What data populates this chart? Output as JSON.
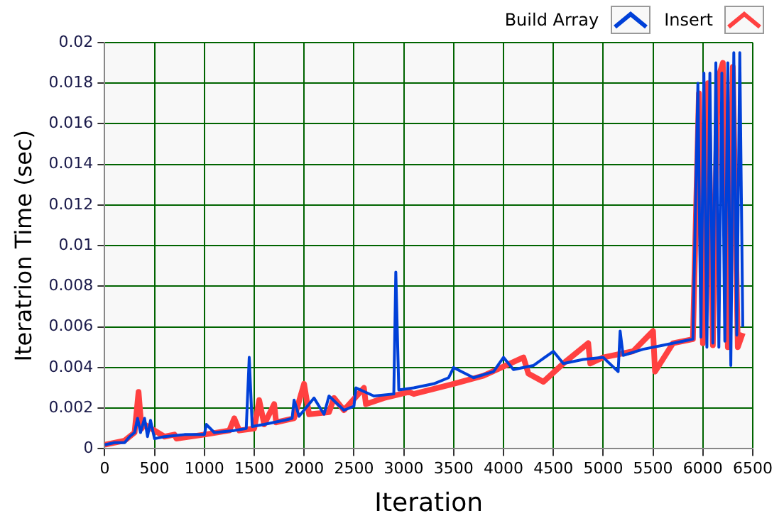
{
  "chart_data": {
    "type": "line",
    "xlabel": "Iteration",
    "ylabel": "Iteratrion Time (sec)",
    "xlim": [
      0,
      6500
    ],
    "xticks": [
      0,
      500,
      1000,
      1500,
      2000,
      2500,
      3000,
      3500,
      4000,
      4500,
      5000,
      5500,
      6000,
      6500
    ],
    "ylim": [
      0,
      0.02
    ],
    "yticks": [
      0,
      0.002,
      0.004,
      0.006,
      0.008,
      0.01,
      0.012,
      0.014,
      0.016,
      0.018,
      0.02
    ],
    "grid": true,
    "legend": "top right",
    "marker": "none",
    "line_style": "solid",
    "series": [
      {
        "name": "Insert",
        "color": "#ff4040",
        "x": [
          0,
          200,
          300,
          340,
          370,
          400,
          600,
          700,
          720,
          1000,
          1250,
          1300,
          1350,
          1500,
          1550,
          1600,
          1700,
          1720,
          1900,
          2000,
          2050,
          2250,
          2300,
          2400,
          2600,
          2620,
          2800,
          3050,
          3100,
          3500,
          3800,
          4200,
          4250,
          4400,
          4600,
          4850,
          4870,
          5000,
          5300,
          5500,
          5520,
          5700,
          5900,
          5960,
          6000,
          6050,
          6100,
          6150,
          6200,
          6250,
          6300,
          6350,
          6400
        ],
        "values": [
          0.0002,
          0.0004,
          0.0008,
          0.0028,
          0.001,
          0.0012,
          0.0006,
          0.0007,
          0.0005,
          0.0007,
          0.0009,
          0.0015,
          0.0009,
          0.001,
          0.0024,
          0.0012,
          0.0022,
          0.0013,
          0.0015,
          0.0032,
          0.0017,
          0.0018,
          0.0025,
          0.0019,
          0.003,
          0.0022,
          0.0025,
          0.0028,
          0.0027,
          0.0032,
          0.0036,
          0.0045,
          0.0037,
          0.0033,
          0.0042,
          0.0052,
          0.0042,
          0.0045,
          0.0048,
          0.0058,
          0.0038,
          0.0052,
          0.0054,
          0.0175,
          0.0052,
          0.018,
          0.0051,
          0.0182,
          0.019,
          0.005,
          0.0188,
          0.005,
          0.0057
        ]
      },
      {
        "name": "Build Array",
        "color": "#0040d8",
        "x": [
          0,
          100,
          200,
          250,
          300,
          330,
          360,
          400,
          430,
          460,
          500,
          600,
          800,
          1000,
          1020,
          1100,
          1300,
          1420,
          1450,
          1480,
          1600,
          1800,
          1880,
          1900,
          1950,
          2100,
          2200,
          2250,
          2400,
          2500,
          2520,
          2700,
          2900,
          2920,
          2950,
          3100,
          3300,
          3450,
          3500,
          3700,
          3900,
          4000,
          4100,
          4300,
          4500,
          4600,
          4800,
          5000,
          5150,
          5170,
          5200,
          5400,
          5600,
          5800,
          5900,
          5950,
          5980,
          6010,
          6040,
          6070,
          6100,
          6130,
          6160,
          6190,
          6220,
          6250,
          6280,
          6310,
          6340,
          6370,
          6400
        ],
        "values": [
          0.0002,
          0.0003,
          0.0003,
          0.0006,
          0.0008,
          0.0015,
          0.0008,
          0.0015,
          0.0006,
          0.0014,
          0.0005,
          0.0006,
          0.0007,
          0.0007,
          0.0012,
          0.0008,
          0.0009,
          0.001,
          0.0045,
          0.0011,
          0.0012,
          0.0014,
          0.0015,
          0.0024,
          0.0016,
          0.0025,
          0.0017,
          0.0026,
          0.0019,
          0.0021,
          0.003,
          0.0026,
          0.0027,
          0.0087,
          0.0029,
          0.003,
          0.0032,
          0.0035,
          0.004,
          0.0035,
          0.0038,
          0.0045,
          0.0039,
          0.0041,
          0.0048,
          0.0042,
          0.0044,
          0.0045,
          0.0038,
          0.0058,
          0.0046,
          0.0049,
          0.0051,
          0.0053,
          0.0054,
          0.018,
          0.0055,
          0.0185,
          0.005,
          0.0185,
          0.0052,
          0.019,
          0.005,
          0.0185,
          0.0053,
          0.019,
          0.0041,
          0.0195,
          0.0056,
          0.0195,
          0.006
        ]
      }
    ]
  }
}
